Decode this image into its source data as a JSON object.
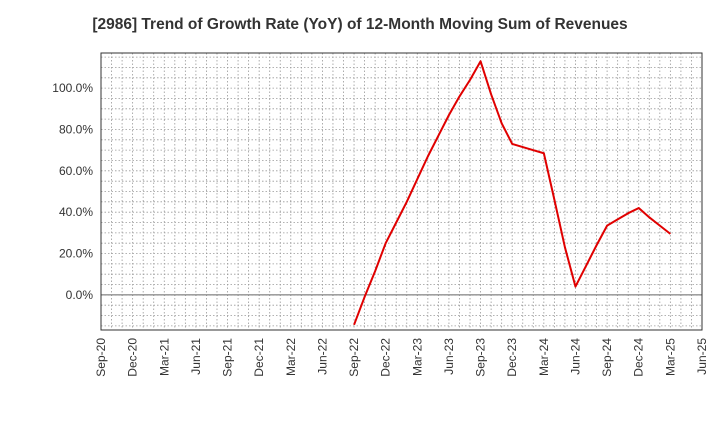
{
  "chart_data": {
    "type": "line",
    "title": "[2986]  Trend of Growth Rate (YoY) of 12-Month Moving Sum of Revenues",
    "xlabel": "",
    "ylabel": "",
    "x_ticks": [
      "Sep-20",
      "Dec-20",
      "Mar-21",
      "Jun-21",
      "Sep-21",
      "Dec-21",
      "Mar-22",
      "Jun-22",
      "Sep-22",
      "Dec-22",
      "Mar-23",
      "Jun-23",
      "Sep-23",
      "Dec-23",
      "Mar-24",
      "Jun-24",
      "Sep-24",
      "Dec-24",
      "Mar-25",
      "Jun-25"
    ],
    "y_ticks": [
      "0.0%",
      "20.0%",
      "40.0%",
      "60.0%",
      "80.0%",
      "100.0%"
    ],
    "y_tick_values": [
      0,
      20,
      40,
      60,
      80,
      100
    ],
    "ylim": [
      -17,
      117
    ],
    "grid": true,
    "series": [
      {
        "color": "#e00000",
        "x": [
          "Sep-22",
          "Oct-22",
          "Nov-22",
          "Dec-22",
          "Jan-23",
          "Feb-23",
          "Mar-23",
          "Apr-23",
          "May-23",
          "Jun-23",
          "Jul-23",
          "Aug-23",
          "Sep-23",
          "Oct-23",
          "Nov-23",
          "Dec-23",
          "Jan-24",
          "Feb-24",
          "Mar-24",
          "Apr-24",
          "May-24",
          "Jun-24",
          "Jul-24",
          "Aug-24",
          "Sep-24",
          "Oct-24",
          "Nov-24",
          "Dec-24",
          "Jan-25",
          "Feb-25",
          "Mar-25"
        ],
        "values": [
          -14.5,
          -1,
          11.5,
          25,
          35,
          45,
          56,
          67,
          77,
          87,
          96,
          104,
          113,
          97,
          83,
          73,
          71.5,
          70,
          68.5,
          46,
          23,
          4,
          14,
          24,
          33.5,
          36.5,
          39.5,
          42,
          37.5,
          33.5,
          29.5
        ]
      }
    ]
  }
}
